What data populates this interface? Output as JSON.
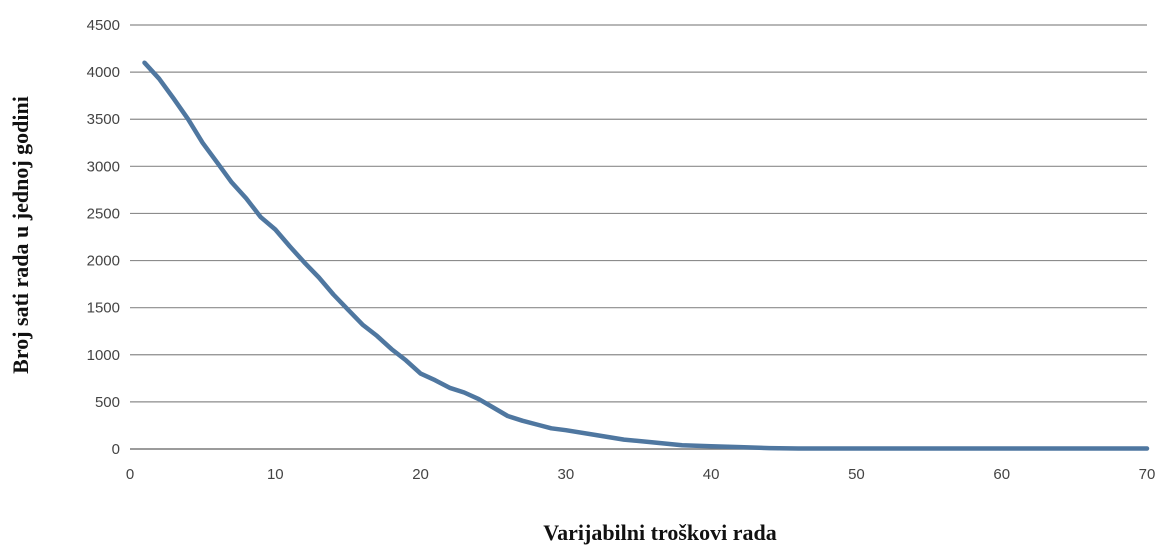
{
  "chart_data": {
    "type": "line",
    "title": "",
    "xlabel": "Varijabilni troškovi rada",
    "ylabel": "Broj sati rada u jednoj godini",
    "xlim": [
      0,
      70
    ],
    "ylim": [
      0,
      4500
    ],
    "xticks": [
      0,
      10,
      20,
      30,
      40,
      50,
      60,
      70
    ],
    "yticks": [
      0,
      500,
      1000,
      1500,
      2000,
      2500,
      3000,
      3500,
      4000,
      4500
    ],
    "grid": "horizontal",
    "legend": "none",
    "series_color": "#4f77a0",
    "series": [
      {
        "x": [
          1,
          2,
          3,
          4,
          5,
          6,
          7,
          8,
          9,
          10,
          11,
          12,
          13,
          14,
          15,
          16,
          17,
          18,
          19,
          20,
          21,
          22,
          23,
          24,
          25,
          26,
          27,
          28,
          29,
          30,
          32,
          34,
          36,
          38,
          40,
          42,
          44,
          46,
          48,
          50,
          55,
          60,
          65,
          70
        ],
        "values": [
          4100,
          3930,
          3720,
          3500,
          3250,
          3040,
          2830,
          2660,
          2460,
          2330,
          2150,
          1980,
          1820,
          1640,
          1480,
          1320,
          1200,
          1060,
          940,
          800,
          730,
          650,
          600,
          530,
          440,
          350,
          300,
          260,
          220,
          200,
          150,
          100,
          70,
          40,
          30,
          20,
          10,
          5,
          5,
          5,
          5,
          5,
          5,
          5
        ]
      }
    ]
  }
}
